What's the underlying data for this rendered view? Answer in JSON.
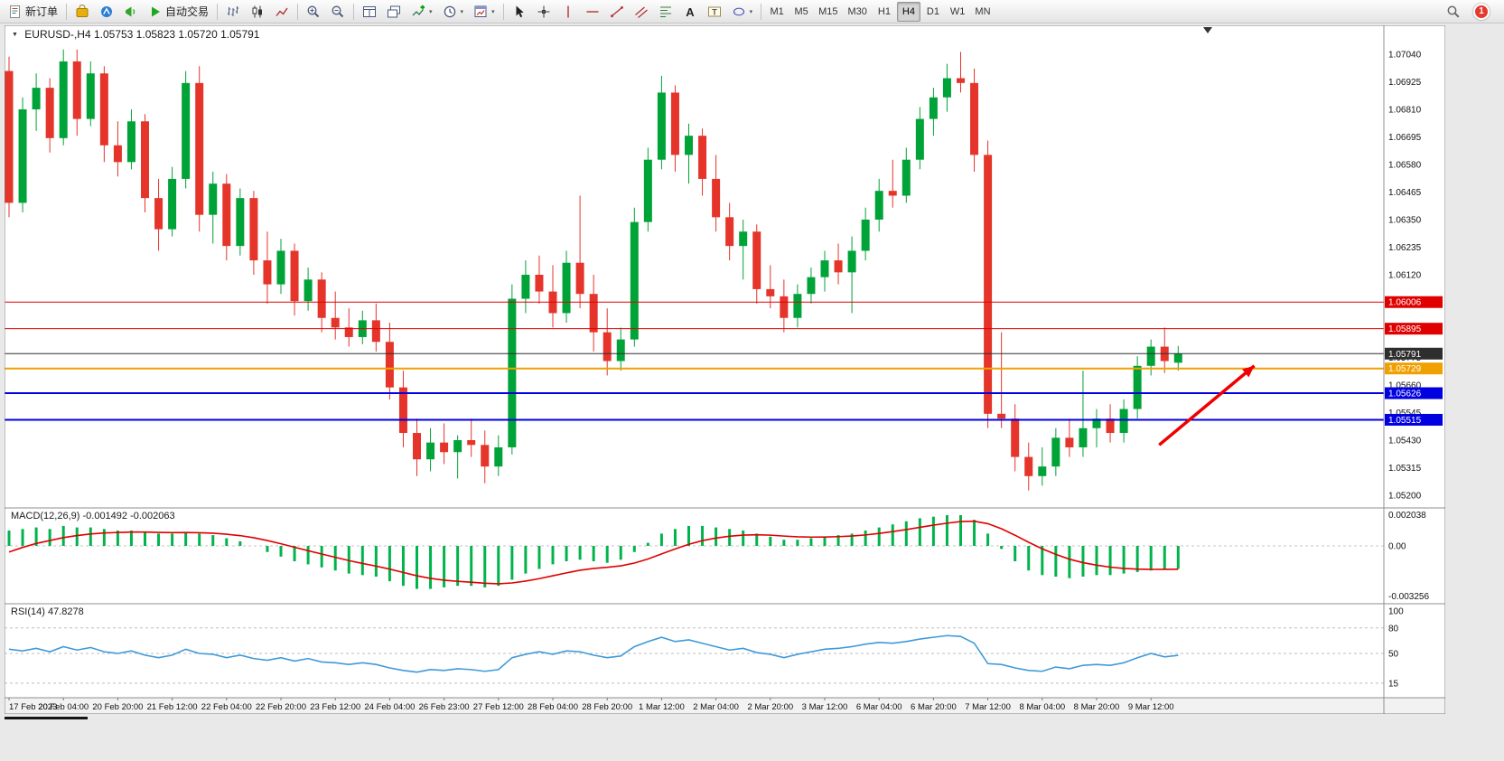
{
  "toolbar": {
    "new_order_label": "新订单",
    "auto_trading_label": "自动交易",
    "timeframes": [
      "M1",
      "M5",
      "M15",
      "M30",
      "H1",
      "H4",
      "D1",
      "W1",
      "MN"
    ],
    "active_timeframe": "H4",
    "notification_count": "1",
    "icons": [
      "new-order-icon",
      "market-icon",
      "community-icon",
      "news-icon",
      "auto-trading-icon",
      "bar-chart-icon",
      "candlestick-chart-icon",
      "line-chart-icon",
      "zoom-in-icon",
      "zoom-out-icon",
      "tile-windows-icon",
      "cascade-windows-icon",
      "indicators-icon",
      "periods-icon",
      "templates-icon",
      "cursor-icon",
      "crosshair-icon",
      "vertical-line-icon",
      "horizontal-line-icon",
      "trendline-icon",
      "channel-icon",
      "fibonacci-icon",
      "text-icon",
      "label-icon",
      "shapes-icon",
      "search-icon"
    ]
  },
  "chart": {
    "title_symbol": "EURUSD-,H4",
    "title_ohlc": "1.05753 1.05823 1.05720 1.05791",
    "macd_title": "MACD(12,26,9)",
    "macd_values": "-0.001492 -0.002063",
    "rsi_title": "RSI(14)",
    "rsi_value": "47.8278"
  },
  "colors": {
    "bull": "#00A338",
    "bear": "#E5342A",
    "chrome": "#E9E9E9",
    "background": "#FFFFFF"
  },
  "chart_data": {
    "type": "candlestick",
    "symbol": "EURUSD",
    "period": "H4",
    "current": {
      "open": 1.05753,
      "high": 1.05823,
      "low": 1.0572,
      "close": 1.05791
    },
    "y_axis": {
      "min": 1.052,
      "max": 1.0704,
      "ticks": [
        "1.07040",
        "1.06925",
        "1.06810",
        "1.06695",
        "1.06580",
        "1.06465",
        "1.06350",
        "1.06235",
        "1.06120",
        "1.06005",
        "1.05890",
        "1.05775",
        "1.05660",
        "1.05545",
        "1.05430",
        "1.05315",
        "1.05200"
      ]
    },
    "x_labels": [
      "17 Feb 2023",
      "20 Feb 04:00",
      "20 Feb 20:00",
      "21 Feb 12:00",
      "22 Feb 04:00",
      "22 Feb 20:00",
      "23 Feb 12:00",
      "24 Feb 04:00",
      "26 Feb 23:00",
      "27 Feb 12:00",
      "28 Feb 04:00",
      "28 Feb 20:00",
      "1 Mar 12:00",
      "2 Mar 04:00",
      "2 Mar 20:00",
      "3 Mar 12:00",
      "6 Mar 04:00",
      "6 Mar 20:00",
      "7 Mar 12:00",
      "8 Mar 04:00",
      "8 Mar 20:00",
      "9 Mar 12:00"
    ],
    "label_every": 4,
    "candles": [
      [
        1.0697,
        1.0703,
        1.0636,
        1.0642
      ],
      [
        1.0642,
        1.0686,
        1.0638,
        1.0681
      ],
      [
        1.0681,
        1.0696,
        1.0672,
        1.069
      ],
      [
        1.069,
        1.0694,
        1.0663,
        1.0669
      ],
      [
        1.0669,
        1.0706,
        1.0666,
        1.0701
      ],
      [
        1.0701,
        1.0706,
        1.067,
        1.0677
      ],
      [
        1.0677,
        1.0701,
        1.0674,
        1.0696
      ],
      [
        1.0696,
        1.0699,
        1.0659,
        1.0666
      ],
      [
        1.0666,
        1.0676,
        1.0653,
        1.0659
      ],
      [
        1.0659,
        1.0681,
        1.0656,
        1.0676
      ],
      [
        1.0676,
        1.0679,
        1.0638,
        1.0644
      ],
      [
        1.0644,
        1.0652,
        1.0622,
        1.0631
      ],
      [
        1.0631,
        1.0657,
        1.0628,
        1.0652
      ],
      [
        1.0652,
        1.0697,
        1.0648,
        1.0692
      ],
      [
        1.0692,
        1.0699,
        1.063,
        1.0637
      ],
      [
        1.0637,
        1.0655,
        1.0625,
        1.065
      ],
      [
        1.065,
        1.0654,
        1.0618,
        1.0624
      ],
      [
        1.0624,
        1.0648,
        1.062,
        1.0644
      ],
      [
        1.0644,
        1.0647,
        1.0612,
        1.0618
      ],
      [
        1.0618,
        1.063,
        1.06,
        1.0608
      ],
      [
        1.0608,
        1.0627,
        1.0604,
        1.0622
      ],
      [
        1.0622,
        1.0625,
        1.0595,
        1.0601
      ],
      [
        1.0601,
        1.0615,
        1.0597,
        1.061
      ],
      [
        1.061,
        1.0613,
        1.0588,
        1.0594
      ],
      [
        1.0594,
        1.0605,
        1.0585,
        1.059
      ],
      [
        1.059,
        1.0598,
        1.0582,
        1.0586
      ],
      [
        1.0586,
        1.0597,
        1.0583,
        1.0593
      ],
      [
        1.0593,
        1.06,
        1.058,
        1.0584
      ],
      [
        1.0584,
        1.0592,
        1.056,
        1.0565
      ],
      [
        1.0565,
        1.0572,
        1.054,
        1.0546
      ],
      [
        1.0546,
        1.0552,
        1.0528,
        1.0535
      ],
      [
        1.0535,
        1.0548,
        1.053,
        1.0542
      ],
      [
        1.0542,
        1.055,
        1.0533,
        1.0538
      ],
      [
        1.0538,
        1.0545,
        1.0527,
        1.0543
      ],
      [
        1.0543,
        1.0552,
        1.0536,
        1.0541
      ],
      [
        1.0541,
        1.0547,
        1.0525,
        1.0532
      ],
      [
        1.0532,
        1.0545,
        1.0528,
        1.054
      ],
      [
        1.054,
        1.0608,
        1.0537,
        1.0602
      ],
      [
        1.0602,
        1.0618,
        1.0596,
        1.0612
      ],
      [
        1.0612,
        1.062,
        1.06,
        1.0605
      ],
      [
        1.0605,
        1.0616,
        1.059,
        1.0596
      ],
      [
        1.0596,
        1.0622,
        1.0592,
        1.0617
      ],
      [
        1.0617,
        1.0645,
        1.0598,
        1.0604
      ],
      [
        1.0604,
        1.0612,
        1.058,
        1.0588
      ],
      [
        1.0588,
        1.0598,
        1.057,
        1.0576
      ],
      [
        1.0576,
        1.059,
        1.0572,
        1.0585
      ],
      [
        1.0585,
        1.064,
        1.0582,
        1.0634
      ],
      [
        1.0634,
        1.0665,
        1.063,
        1.066
      ],
      [
        1.066,
        1.0695,
        1.0656,
        1.0688
      ],
      [
        1.0688,
        1.0691,
        1.0655,
        1.0662
      ],
      [
        1.0662,
        1.0675,
        1.065,
        1.067
      ],
      [
        1.067,
        1.0673,
        1.0645,
        1.0652
      ],
      [
        1.0652,
        1.0662,
        1.063,
        1.0636
      ],
      [
        1.0636,
        1.0642,
        1.0618,
        1.0624
      ],
      [
        1.0624,
        1.0635,
        1.061,
        1.063
      ],
      [
        1.063,
        1.0633,
        1.06,
        1.0606
      ],
      [
        1.0606,
        1.0616,
        1.0598,
        1.0603
      ],
      [
        1.0603,
        1.061,
        1.0588,
        1.0594
      ],
      [
        1.0594,
        1.0608,
        1.059,
        1.0604
      ],
      [
        1.0604,
        1.0615,
        1.06,
        1.0611
      ],
      [
        1.0611,
        1.0622,
        1.0605,
        1.0618
      ],
      [
        1.0618,
        1.0625,
        1.0608,
        1.0613
      ],
      [
        1.0613,
        1.0628,
        1.0596,
        1.0622
      ],
      [
        1.0622,
        1.064,
        1.0618,
        1.0635
      ],
      [
        1.0635,
        1.0652,
        1.063,
        1.0647
      ],
      [
        1.0647,
        1.066,
        1.064,
        1.0645
      ],
      [
        1.0645,
        1.0665,
        1.0642,
        1.066
      ],
      [
        1.066,
        1.0682,
        1.0656,
        1.0677
      ],
      [
        1.0677,
        1.069,
        1.067,
        1.0686
      ],
      [
        1.0686,
        1.07,
        1.068,
        1.0694
      ],
      [
        1.0694,
        1.0705,
        1.0688,
        1.0692
      ],
      [
        1.0692,
        1.0698,
        1.0655,
        1.0662
      ],
      [
        1.0662,
        1.0668,
        1.0548,
        1.0554
      ],
      [
        1.0554,
        1.0588,
        1.0548,
        1.0552
      ],
      [
        1.0552,
        1.0558,
        1.053,
        1.0536
      ],
      [
        1.0536,
        1.0542,
        1.0522,
        1.0528
      ],
      [
        1.0528,
        1.054,
        1.0524,
        1.0532
      ],
      [
        1.0532,
        1.0548,
        1.0528,
        1.0544
      ],
      [
        1.0544,
        1.0552,
        1.0536,
        1.054
      ],
      [
        1.054,
        1.0572,
        1.0536,
        1.0548
      ],
      [
        1.0548,
        1.0556,
        1.054,
        1.0552
      ],
      [
        1.0552,
        1.0558,
        1.0542,
        1.0546
      ],
      [
        1.0546,
        1.056,
        1.0542,
        1.0556
      ],
      [
        1.0556,
        1.0578,
        1.0552,
        1.0574
      ],
      [
        1.0574,
        1.0585,
        1.057,
        1.0582
      ],
      [
        1.0582,
        1.059,
        1.0571,
        1.0576
      ],
      [
        1.05753,
        1.05823,
        1.0572,
        1.05791
      ]
    ],
    "hlines": [
      {
        "price": 1.06006,
        "label": "1.06006",
        "color": "#E00000",
        "width": 1
      },
      {
        "price": 1.05895,
        "label": "1.05895",
        "color": "#E00000",
        "width": 1
      },
      {
        "price": 1.05791,
        "label": "1.05791",
        "color": "#2E2E2E",
        "width": 1
      },
      {
        "price": 1.05729,
        "label": "1.05729",
        "color": "#F0A000",
        "width": 2
      },
      {
        "price": 1.05626,
        "label": "1.05626",
        "color": "#0000E0",
        "width": 2
      },
      {
        "price": 1.05515,
        "label": "1.05515",
        "color": "#0000E0",
        "width": 2
      }
    ],
    "macd": {
      "hist_color": "#00B44B",
      "signal_color": "#E00000",
      "axis_labels": [
        "0.002038",
        "0.00",
        "-0.003256"
      ],
      "hist": [
        0.001,
        0.0011,
        0.0012,
        0.0011,
        0.0013,
        0.0012,
        0.0012,
        0.0011,
        0.001,
        0.001,
        0.0009,
        0.0008,
        0.0008,
        0.0009,
        0.0008,
        0.0007,
        0.0005,
        0.0003,
        0.0,
        -0.0004,
        -0.0007,
        -0.001,
        -0.0012,
        -0.0014,
        -0.0016,
        -0.0018,
        -0.0019,
        -0.002,
        -0.0023,
        -0.0026,
        -0.0028,
        -0.0028,
        -0.0027,
        -0.0026,
        -0.0026,
        -0.0027,
        -0.0026,
        -0.0022,
        -0.0018,
        -0.0015,
        -0.0012,
        -0.001,
        -0.0009,
        -0.001,
        -0.0011,
        -0.0009,
        -0.0004,
        0.0002,
        0.0008,
        0.0011,
        0.0013,
        0.0013,
        0.0012,
        0.0011,
        0.001,
        0.0008,
        0.0006,
        0.0004,
        0.0004,
        0.0005,
        0.0006,
        0.0007,
        0.0008,
        0.001,
        0.0012,
        0.0014,
        0.0016,
        0.0018,
        0.0019,
        0.002,
        0.002,
        0.0017,
        0.0008,
        -0.0002,
        -0.001,
        -0.0016,
        -0.0019,
        -0.002,
        -0.0021,
        -0.002,
        -0.0019,
        -0.0019,
        -0.0018,
        -0.0017,
        -0.0016,
        -0.0015,
        -0.001492
      ]
    },
    "rsi": {
      "line_color": "#3E9AD9",
      "levels": [
        80,
        50,
        15
      ],
      "level_labels": [
        "100",
        "80",
        "50",
        "15"
      ],
      "values": [
        55,
        53,
        56,
        52,
        58,
        54,
        57,
        52,
        50,
        53,
        48,
        45,
        48,
        55,
        50,
        49,
        45,
        48,
        44,
        42,
        45,
        41,
        44,
        40,
        39,
        37,
        39,
        37,
        33,
        30,
        28,
        31,
        30,
        32,
        31,
        29,
        31,
        45,
        49,
        52,
        49,
        53,
        52,
        48,
        45,
        47,
        58,
        64,
        69,
        64,
        66,
        62,
        58,
        54,
        56,
        51,
        49,
        45,
        49,
        52,
        55,
        56,
        58,
        61,
        63,
        62,
        64,
        67,
        69,
        71,
        70,
        62,
        38,
        37,
        33,
        30,
        29,
        34,
        32,
        36,
        37,
        36,
        39,
        45,
        50,
        46,
        47.8278
      ]
    },
    "annotations": {
      "arrow": {
        "from_bar": 84.6,
        "from_price": 1.0541,
        "to_bar": 91.6,
        "to_price": 1.0574,
        "color": "#F00000"
      }
    }
  }
}
